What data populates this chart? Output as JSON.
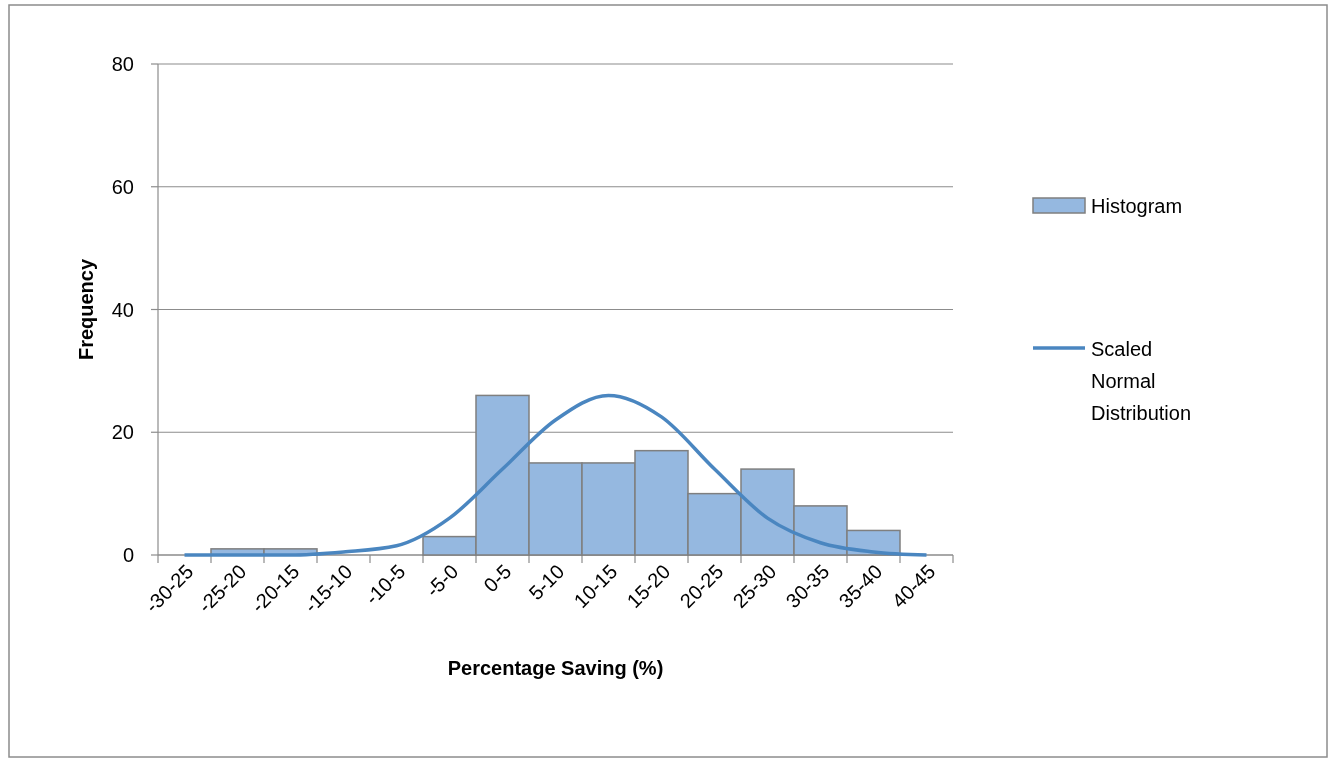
{
  "chart_data": {
    "type": "bar",
    "xlabel": "Percentage Saving (%)",
    "ylabel": "Frequency",
    "categories": [
      "-30-25",
      "-25-20",
      "-20-15",
      "-15-10",
      "-10-5",
      "-5-0",
      "0-5",
      "5-10",
      "10-15",
      "15-20",
      "20-25",
      "25-30",
      "30-35",
      "35-40",
      "40-45"
    ],
    "series": [
      {
        "name": "Histogram",
        "color": "#95b8e0",
        "values": [
          0,
          1,
          1,
          0,
          0,
          3,
          26,
          15,
          15,
          17,
          10,
          14,
          8,
          4,
          0
        ]
      },
      {
        "name": "Scaled Normal Distribution",
        "type": "line",
        "color": "#4a86c0",
        "values": [
          0,
          0,
          0,
          0.5,
          1.5,
          6,
          14,
          22,
          26,
          22.5,
          14,
          6,
          2,
          0.5,
          0
        ]
      }
    ],
    "ylim": [
      0,
      80
    ],
    "yticks": [
      0,
      20,
      40,
      60,
      80
    ],
    "grid": "y",
    "legend": "right",
    "marker": "none",
    "line_style": "solid"
  }
}
